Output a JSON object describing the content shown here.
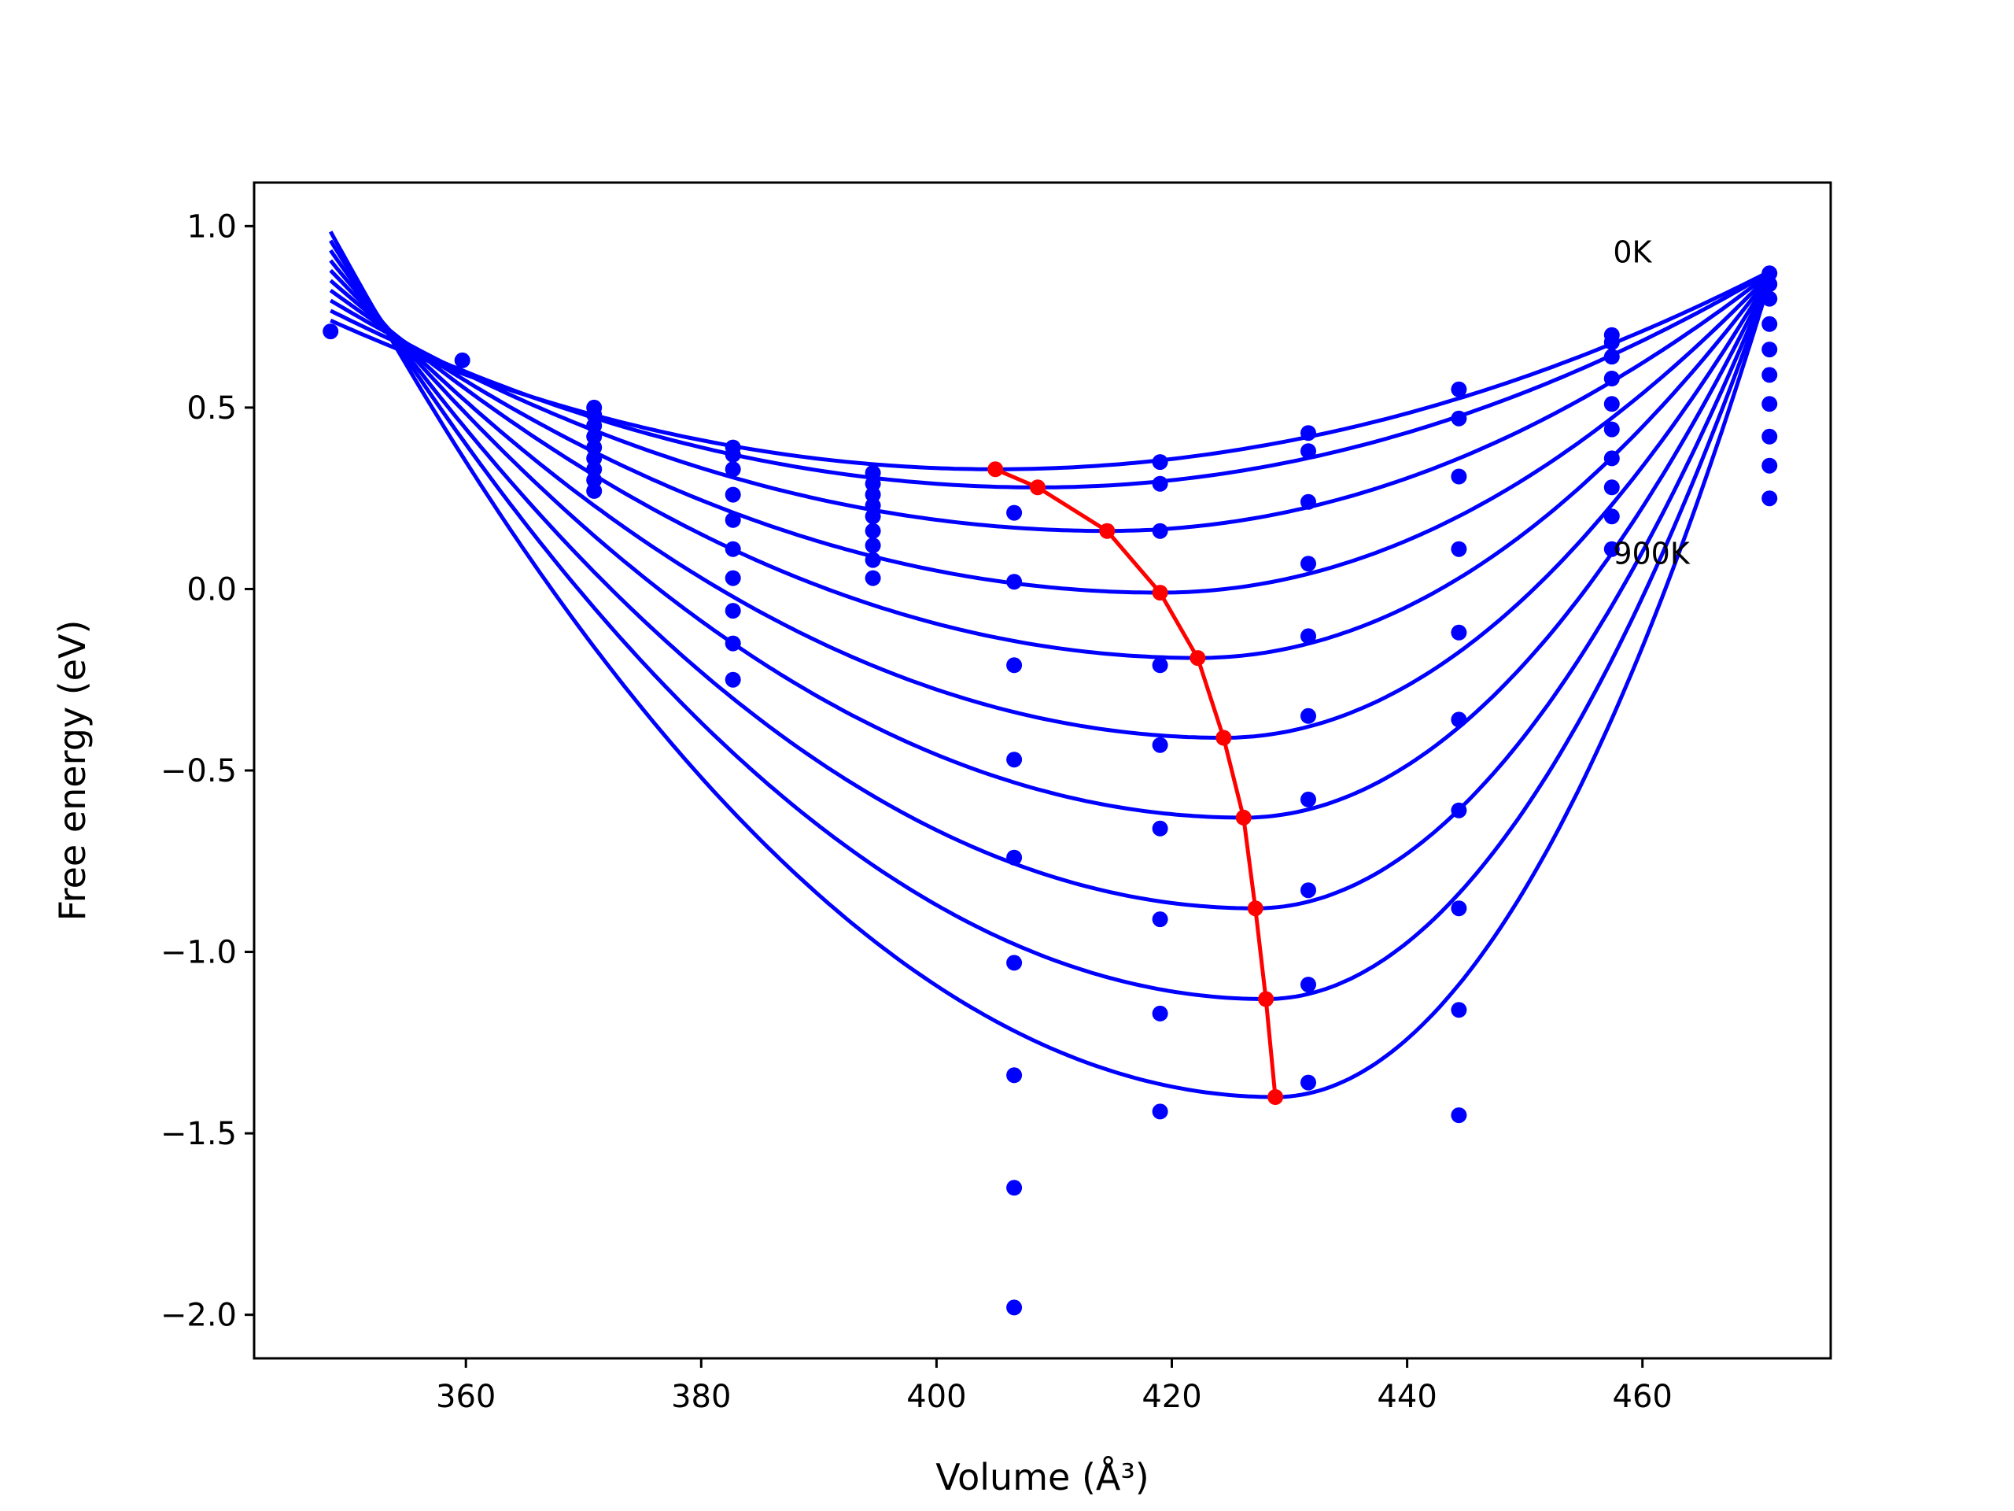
{
  "chart_data": {
    "type": "line",
    "xlabel": "Volume (Å³)",
    "ylabel": "Free energy (eV)",
    "xlim": [
      342.0,
      476.0
    ],
    "ylim": [
      -2.12,
      1.12
    ],
    "xticks": [
      360,
      380,
      400,
      420,
      440,
      460
    ],
    "yticks": [
      -2.0,
      -1.5,
      -1.0,
      -0.5,
      0.0,
      0.5,
      1.0
    ],
    "xtick_labels": [
      "360",
      "380",
      "400",
      "420",
      "440",
      "460"
    ],
    "ytick_labels": [
      "−2.0",
      "−1.5",
      "−1.0",
      "−0.5",
      "0.0",
      "0.5",
      "1.0"
    ],
    "grid": false,
    "annotations": [
      {
        "text": "0K",
        "x": 457.5,
        "y": 0.93
      },
      {
        "text": "900K",
        "x": 457.5,
        "y": 0.1
      }
    ],
    "colors": {
      "curves": "#0000ff",
      "points": "#0000ff",
      "minimum_path": "#ff0000"
    },
    "fit_curves": [
      {
        "vmin": 405.0,
        "emin": 0.33,
        "left": 0.74,
        "right": 0.875
      },
      {
        "vmin": 408.6,
        "emin": 0.28,
        "left": 0.767,
        "right": 0.872
      },
      {
        "vmin": 414.5,
        "emin": 0.16,
        "left": 0.795,
        "right": 0.869
      },
      {
        "vmin": 419.0,
        "emin": -0.01,
        "left": 0.823,
        "right": 0.866
      },
      {
        "vmin": 422.2,
        "emin": -0.19,
        "left": 0.85,
        "right": 0.863
      },
      {
        "vmin": 424.4,
        "emin": -0.41,
        "left": 0.878,
        "right": 0.86
      },
      {
        "vmin": 426.1,
        "emin": -0.63,
        "left": 0.905,
        "right": 0.857
      },
      {
        "vmin": 427.1,
        "emin": -0.88,
        "left": 0.933,
        "right": 0.854
      },
      {
        "vmin": 428.0,
        "emin": -1.13,
        "left": 0.96,
        "right": 0.851
      },
      {
        "vmin": 428.8,
        "emin": -1.4,
        "left": 0.985,
        "right": 0.848
      }
    ],
    "curve_v_range": [
      348.5,
      470.8
    ],
    "minimum_path": {
      "x": [
        405.0,
        408.6,
        414.5,
        419.0,
        422.2,
        424.4,
        426.1,
        427.1,
        428.0,
        428.8
      ],
      "y": [
        0.33,
        0.28,
        0.16,
        -0.01,
        -0.19,
        -0.41,
        -0.63,
        -0.88,
        -1.13,
        -1.4
      ]
    },
    "data_points": [
      {
        "x": 348.5,
        "y": [
          0.71
        ]
      },
      {
        "x": 359.7,
        "y": [
          0.63
        ]
      },
      {
        "x": 370.9,
        "y": [
          0.5,
          0.48,
          0.45,
          0.42,
          0.39,
          0.36,
          0.33,
          0.3,
          0.27
        ]
      },
      {
        "x": 382.7,
        "y": [
          0.39,
          0.37,
          0.33,
          0.26,
          0.19,
          0.11,
          0.03,
          -0.06,
          -0.15,
          -0.25
        ]
      },
      {
        "x": 394.6,
        "y": [
          0.32,
          0.29,
          0.26,
          0.23,
          0.2,
          0.16,
          0.12,
          0.08,
          0.03
        ]
      },
      {
        "x": 406.6,
        "y": [
          0.21,
          0.02,
          -0.21,
          -0.47,
          -0.74,
          -1.03,
          -1.34,
          -1.65,
          -1.98
        ]
      },
      {
        "x": 419.0,
        "y": [
          0.35,
          0.29,
          0.16,
          -0.21,
          -0.43,
          -0.66,
          -0.91,
          -1.17,
          -1.44
        ]
      },
      {
        "x": 431.6,
        "y": [
          0.43,
          0.38,
          0.24,
          0.07,
          -0.13,
          -0.35,
          -0.58,
          -0.83,
          -1.09,
          -1.36
        ]
      },
      {
        "x": 444.4,
        "y": [
          0.55,
          0.47,
          0.31,
          0.11,
          -0.12,
          -0.36,
          -0.61,
          -0.88,
          -1.16,
          -1.45
        ]
      },
      {
        "x": 457.4,
        "y": [
          0.7,
          0.68,
          0.64,
          0.58,
          0.51,
          0.44,
          0.36,
          0.28,
          0.2,
          0.11
        ]
      },
      {
        "x": 470.8,
        "y": [
          0.87,
          0.84,
          0.8,
          0.73,
          0.66,
          0.59,
          0.51,
          0.42,
          0.34,
          0.25
        ]
      }
    ]
  }
}
